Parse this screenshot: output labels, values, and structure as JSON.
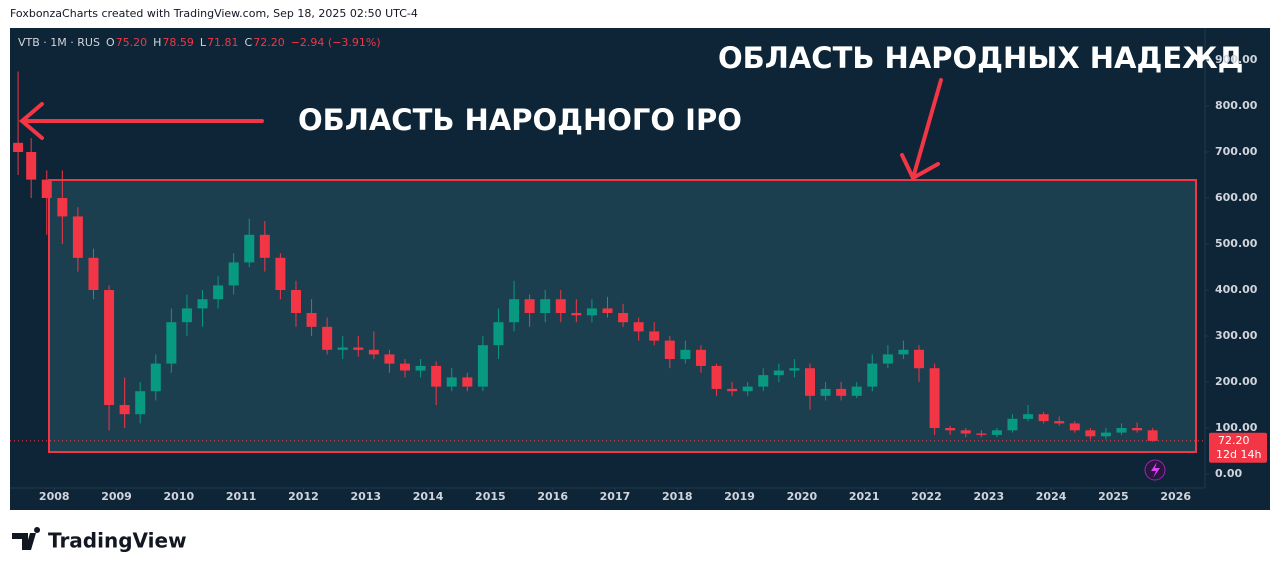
{
  "header": {
    "attribution": "FoxbonzaCharts created with TradingView.com, Sep 18, 2025 02:50 UTC-4"
  },
  "chart_data": {
    "type": "candlestick",
    "legend": {
      "symbol": "VTB · 1M · RUS",
      "o_label": "O",
      "open": "75.20",
      "h_label": "H",
      "high": "78.59",
      "l_label": "L",
      "low": "71.81",
      "c_label": "C",
      "close": "72.20",
      "change": "−2.94 (−3.91%)"
    },
    "annotations": [
      "ОБЛАСТЬ НАРОДНОГО IPO",
      "ОБЛАСТЬ НАРОДНЫХ НАДЕЖД"
    ],
    "up_color": "#089981",
    "down_color": "#f23645",
    "x": [
      2007.42,
      2007.63,
      2007.88,
      2008.13,
      2008.38,
      2008.63,
      2008.88,
      2009.13,
      2009.38,
      2009.63,
      2009.88,
      2010.13,
      2010.38,
      2010.63,
      2010.88,
      2011.13,
      2011.38,
      2011.63,
      2011.88,
      2012.13,
      2012.38,
      2012.63,
      2012.88,
      2013.13,
      2013.38,
      2013.63,
      2013.88,
      2014.13,
      2014.38,
      2014.63,
      2014.88,
      2015.13,
      2015.38,
      2015.63,
      2015.88,
      2016.13,
      2016.38,
      2016.63,
      2016.88,
      2017.13,
      2017.38,
      2017.63,
      2017.88,
      2018.13,
      2018.38,
      2018.63,
      2018.88,
      2019.13,
      2019.38,
      2019.63,
      2019.88,
      2020.13,
      2020.38,
      2020.63,
      2020.88,
      2021.13,
      2021.38,
      2021.63,
      2021.88,
      2022.13,
      2022.38,
      2022.63,
      2022.88,
      2023.13,
      2023.38,
      2023.63,
      2023.88,
      2024.13,
      2024.38,
      2024.63,
      2024.88,
      2025.13,
      2025.38,
      2025.63
    ],
    "open": [
      720,
      700,
      640,
      600,
      560,
      470,
      400,
      150,
      130,
      180,
      240,
      330,
      360,
      380,
      410,
      460,
      520,
      470,
      400,
      350,
      320,
      270,
      275,
      270,
      260,
      240,
      225,
      235,
      190,
      210,
      190,
      280,
      330,
      380,
      350,
      380,
      350,
      345,
      360,
      350,
      330,
      310,
      290,
      250,
      270,
      235,
      185,
      180,
      190,
      215,
      225,
      230,
      170,
      185,
      170,
      190,
      240,
      260,
      270,
      230,
      100,
      95,
      88,
      85,
      95,
      120,
      130,
      115,
      110,
      95,
      82,
      90,
      100,
      95
    ],
    "high": [
      875,
      730,
      660,
      660,
      580,
      490,
      410,
      210,
      200,
      260,
      360,
      390,
      400,
      430,
      480,
      555,
      550,
      480,
      420,
      380,
      340,
      300,
      300,
      310,
      270,
      250,
      250,
      245,
      230,
      220,
      300,
      360,
      420,
      390,
      400,
      400,
      380,
      380,
      385,
      370,
      340,
      330,
      300,
      290,
      280,
      240,
      200,
      200,
      230,
      240,
      250,
      240,
      200,
      200,
      200,
      260,
      280,
      290,
      280,
      240,
      105,
      100,
      95,
      100,
      130,
      150,
      135,
      125,
      115,
      100,
      100,
      110,
      112,
      100
    ],
    "low": [
      650,
      600,
      520,
      500,
      440,
      380,
      95,
      100,
      110,
      160,
      220,
      300,
      320,
      360,
      390,
      450,
      440,
      380,
      320,
      300,
      260,
      250,
      255,
      250,
      220,
      210,
      210,
      150,
      180,
      180,
      180,
      250,
      310,
      320,
      330,
      330,
      330,
      330,
      340,
      320,
      290,
      280,
      230,
      240,
      220,
      170,
      170,
      170,
      180,
      200,
      210,
      140,
      160,
      160,
      165,
      180,
      230,
      250,
      200,
      85,
      85,
      80,
      80,
      80,
      90,
      115,
      110,
      105,
      90,
      75,
      75,
      85,
      90,
      70
    ],
    "close": [
      700,
      640,
      600,
      560,
      470,
      400,
      150,
      130,
      180,
      240,
      330,
      360,
      380,
      410,
      460,
      520,
      470,
      400,
      350,
      320,
      270,
      275,
      270,
      260,
      240,
      225,
      235,
      190,
      210,
      190,
      280,
      330,
      380,
      350,
      380,
      350,
      345,
      360,
      350,
      330,
      310,
      290,
      250,
      270,
      235,
      185,
      180,
      190,
      215,
      225,
      230,
      170,
      185,
      170,
      190,
      240,
      260,
      270,
      230,
      100,
      95,
      88,
      85,
      95,
      120,
      130,
      115,
      110,
      95,
      82,
      90,
      100,
      95,
      72.2
    ],
    "xlim": [
      2007.29,
      2026.47
    ],
    "xticks": [
      2008,
      2009,
      2010,
      2011,
      2012,
      2013,
      2014,
      2015,
      2016,
      2017,
      2018,
      2019,
      2020,
      2021,
      2022,
      2023,
      2024,
      2025,
      2026
    ],
    "ylim": [
      -30.4,
      969.6
    ],
    "yticks": [
      {
        "value": 900,
        "label": "900.00"
      },
      {
        "value": 800,
        "label": "800.00"
      },
      {
        "value": 700,
        "label": "700.00"
      },
      {
        "value": 600,
        "label": "600.00"
      },
      {
        "value": 500,
        "label": "500.00"
      },
      {
        "value": 400,
        "label": "400.00"
      },
      {
        "value": 300,
        "label": "300.00"
      },
      {
        "value": 200,
        "label": "200.00"
      },
      {
        "value": 100,
        "label": "100.00"
      },
      {
        "value": 0,
        "label": "0.00"
      }
    ],
    "last_price": {
      "value": 72.2,
      "label": "72.20"
    },
    "countdown": "12d 14h"
  },
  "footer": {
    "brand": "TradingView"
  }
}
